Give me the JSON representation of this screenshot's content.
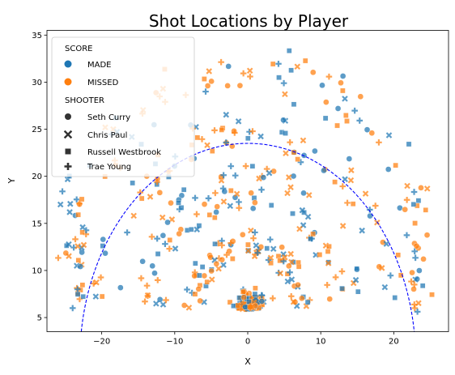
{
  "chart_data": {
    "type": "scatter",
    "title": "Shot Locations by Player",
    "xlabel": "X",
    "ylabel": "Y",
    "xlim": [
      -27.5,
      27.5
    ],
    "ylim": [
      3.5,
      35.5
    ],
    "xticks": [
      -20,
      -10,
      0,
      10,
      20
    ],
    "yticks": [
      5,
      10,
      15,
      20,
      25,
      30,
      35
    ],
    "grid": false,
    "legend_position": "top-left",
    "legend": {
      "hue_title": "SCORE",
      "hue_entries": [
        {
          "label": "MADE",
          "color": "#1f77b4"
        },
        {
          "label": "MISSED",
          "color": "#ff7f0e"
        }
      ],
      "style_title": "SHOOTER",
      "style_entries": [
        {
          "label": "Seth Curry",
          "marker": "circle"
        },
        {
          "label": "Chris Paul",
          "marker": "x"
        },
        {
          "label": "Russell Westbrook",
          "marker": "square"
        },
        {
          "label": "Trae Young",
          "marker": "plus"
        }
      ]
    },
    "arc": {
      "radius": 23,
      "color": "#0000ff",
      "style": "dashed"
    },
    "shots_seed": 7,
    "shots_count": 520
  }
}
